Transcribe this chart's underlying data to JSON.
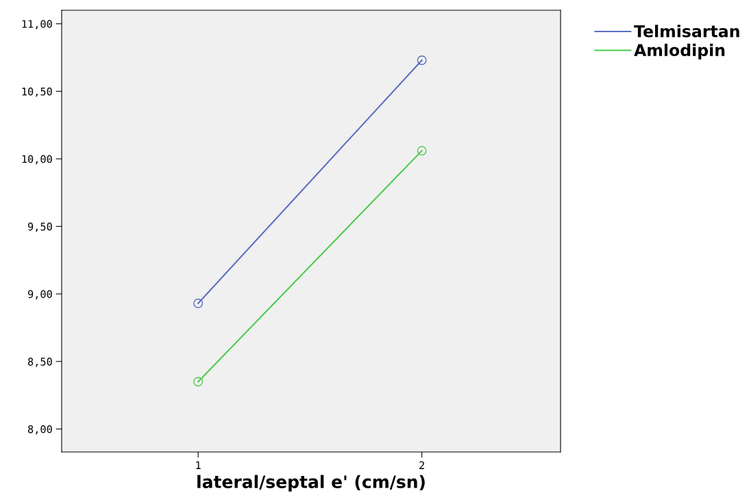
{
  "chart_data": {
    "type": "line",
    "xlabel": "lateral/septal e' (cm/sn)",
    "categories": [
      "1",
      "2"
    ],
    "series": [
      {
        "name": "Telmisartan",
        "color": "#5b6ec4",
        "values": [
          8.93,
          10.73
        ]
      },
      {
        "name": "Amlodipin",
        "color": "#4ccb4c",
        "values": [
          8.35,
          10.06
        ]
      }
    ],
    "ylim": [
      7.83,
      11.1
    ],
    "yticks": [
      {
        "value": 8,
        "label": "8,00"
      },
      {
        "value": 8.5,
        "label": "8,50"
      },
      {
        "value": 9,
        "label": "9,00"
      },
      {
        "value": 9.5,
        "label": "9,50"
      },
      {
        "value": 10,
        "label": "10,00"
      },
      {
        "value": 10.5,
        "label": "10,50"
      },
      {
        "value": 11,
        "label": "11,00"
      }
    ],
    "marker": "circle",
    "line_style": "solid",
    "grid": false,
    "legend": "top right"
  }
}
